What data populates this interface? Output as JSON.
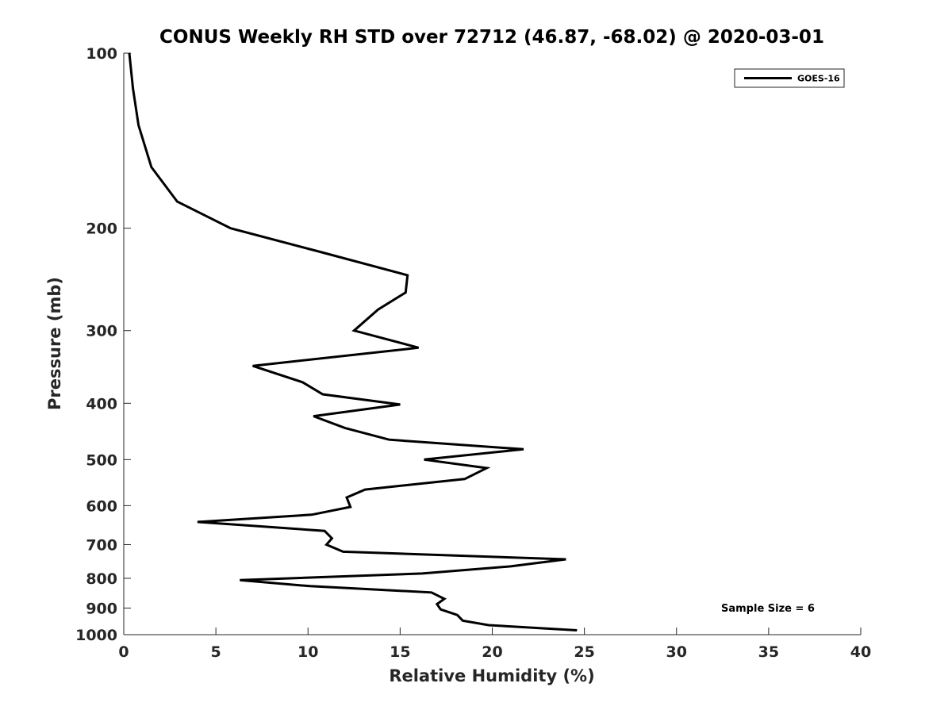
{
  "chart_data": {
    "type": "line",
    "title": "CONUS Weekly RH STD over 72712 (46.87, -68.02) @ 2020-03-01",
    "xlabel": "Relative Humidity (%)",
    "ylabel": "Pressure (mb)",
    "xlim": [
      0,
      40
    ],
    "ylim": [
      100,
      1000
    ],
    "yscale": "log",
    "y_reversed": true,
    "grid": false,
    "xticks": [
      "0",
      "5",
      "10",
      "15",
      "20",
      "25",
      "30",
      "35",
      "40"
    ],
    "yticks": [
      "100",
      "200",
      "300",
      "400",
      "500",
      "600",
      "700",
      "800",
      "900",
      "1000"
    ],
    "legend": {
      "position": "top-right",
      "entries": [
        "GOES-16"
      ]
    },
    "annotation": "Sample Size = 6",
    "series": [
      {
        "name": "GOES-16",
        "color": "#000000",
        "points": [
          [
            0.3,
            100
          ],
          [
            0.5,
            115
          ],
          [
            0.8,
            133
          ],
          [
            1.5,
            157
          ],
          [
            2.9,
            180
          ],
          [
            5.8,
            200
          ],
          [
            10.5,
            219
          ],
          [
            15.4,
            241
          ],
          [
            15.3,
            258
          ],
          [
            13.8,
            276
          ],
          [
            12.5,
            300
          ],
          [
            16.0,
            321
          ],
          [
            7.0,
            345
          ],
          [
            9.7,
            368
          ],
          [
            10.8,
            386
          ],
          [
            15.0,
            402
          ],
          [
            10.3,
            421
          ],
          [
            12.0,
            441
          ],
          [
            14.4,
            462
          ],
          [
            21.7,
            480
          ],
          [
            16.3,
            500
          ],
          [
            19.7,
            517
          ],
          [
            18.5,
            540
          ],
          [
            13.1,
            563
          ],
          [
            12.1,
            581
          ],
          [
            12.3,
            603
          ],
          [
            10.2,
            622
          ],
          [
            4.0,
            640
          ],
          [
            10.9,
            663
          ],
          [
            11.3,
            683
          ],
          [
            11.0,
            700
          ],
          [
            11.9,
            720
          ],
          [
            24.0,
            742
          ],
          [
            21.0,
            763
          ],
          [
            16.2,
            785
          ],
          [
            6.3,
            806
          ],
          [
            10.1,
            825
          ],
          [
            16.7,
            846
          ],
          [
            17.4,
            868
          ],
          [
            17.0,
            886
          ],
          [
            17.2,
            905
          ],
          [
            18.1,
            925
          ],
          [
            18.4,
            946
          ],
          [
            19.8,
            963
          ],
          [
            24.6,
            983
          ]
        ]
      }
    ]
  }
}
